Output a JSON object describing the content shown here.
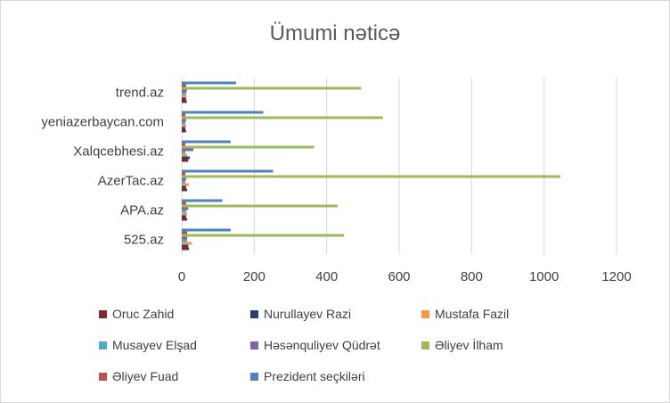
{
  "chart_data": {
    "type": "bar",
    "orientation": "horizontal",
    "title": "Ümumi nəticə",
    "categories": [
      "525.az",
      "APA.az",
      "AzerTac.az",
      "Xalqcebhesi.az",
      "yeniazerbaycan.com",
      "trend.az"
    ],
    "xlim": [
      0,
      1200
    ],
    "xticks": [
      0,
      200,
      400,
      600,
      800,
      1000,
      1200
    ],
    "grid": true,
    "legend_position": "bottom",
    "series": [
      {
        "name": "Oruc Zahid",
        "color": "#7b2c2c",
        "values": [
          20,
          15,
          15,
          18,
          12,
          14
        ]
      },
      {
        "name": "Nurullayev Razi",
        "color": "#2e3f6e",
        "values": [
          18,
          12,
          12,
          22,
          10,
          12
        ]
      },
      {
        "name": "Mustafa Fazil",
        "color": "#f79646",
        "values": [
          28,
          15,
          20,
          15,
          12,
          13
        ]
      },
      {
        "name": "Musayev Elşad",
        "color": "#4bacc6",
        "values": [
          15,
          12,
          10,
          10,
          10,
          12
        ]
      },
      {
        "name": "Həsənquliyev Qüdrət",
        "color": "#8064a2",
        "values": [
          15,
          18,
          12,
          32,
          12,
          14
        ]
      },
      {
        "name": "Əliyev İlham",
        "color": "#9bbb59",
        "values": [
          448,
          430,
          1045,
          365,
          555,
          495
        ]
      },
      {
        "name": "Əliyev Fuad",
        "color": "#c0504d",
        "values": [
          15,
          12,
          10,
          10,
          10,
          12
        ]
      },
      {
        "name": "Prezident seçkiləri",
        "color": "#4f81bd",
        "values": [
          135,
          112,
          252,
          135,
          225,
          150
        ]
      }
    ]
  }
}
